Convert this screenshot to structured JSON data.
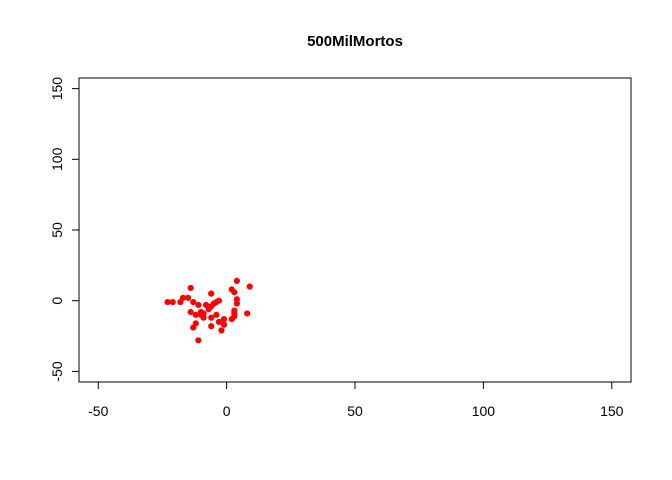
{
  "chart_data": {
    "type": "scatter",
    "title": "500MilMortos",
    "xlabel": "",
    "ylabel": "",
    "xlim": [
      -57.5,
      157.5
    ],
    "ylim": [
      -57.5,
      157.5
    ],
    "x_ticks": [
      -50,
      0,
      50,
      100,
      150
    ],
    "y_ticks": [
      -50,
      0,
      50,
      100,
      150
    ],
    "grid": false,
    "legend": "none",
    "point_color": "#ff0000",
    "points": [
      {
        "x": -23,
        "y": -1
      },
      {
        "x": -21,
        "y": -1
      },
      {
        "x": -18,
        "y": -1
      },
      {
        "x": -17,
        "y": 2
      },
      {
        "x": -15,
        "y": 2
      },
      {
        "x": -14,
        "y": 9
      },
      {
        "x": -14,
        "y": -8
      },
      {
        "x": -13,
        "y": -1
      },
      {
        "x": -13,
        "y": -19
      },
      {
        "x": -12,
        "y": -16
      },
      {
        "x": -12,
        "y": -10
      },
      {
        "x": -11,
        "y": -28
      },
      {
        "x": -11,
        "y": -3
      },
      {
        "x": -10,
        "y": -8
      },
      {
        "x": -10,
        "y": -10
      },
      {
        "x": -9,
        "y": -9
      },
      {
        "x": -9,
        "y": -12
      },
      {
        "x": -8,
        "y": -3
      },
      {
        "x": -7,
        "y": -6
      },
      {
        "x": -6,
        "y": -4
      },
      {
        "x": -6,
        "y": -12
      },
      {
        "x": -6,
        "y": -18
      },
      {
        "x": -6,
        "y": 5
      },
      {
        "x": -5,
        "y": -2
      },
      {
        "x": -4,
        "y": -1
      },
      {
        "x": -4,
        "y": -10
      },
      {
        "x": -3,
        "y": 0
      },
      {
        "x": -3,
        "y": -15
      },
      {
        "x": -2,
        "y": -21
      },
      {
        "x": -1,
        "y": -17
      },
      {
        "x": 2,
        "y": 8
      },
      {
        "x": 2,
        "y": -13
      },
      {
        "x": 3,
        "y": 6
      },
      {
        "x": 3,
        "y": -9
      },
      {
        "x": 3,
        "y": -11
      },
      {
        "x": 3,
        "y": -7
      },
      {
        "x": 4,
        "y": 1
      },
      {
        "x": 4,
        "y": -2
      },
      {
        "x": 4,
        "y": 14
      },
      {
        "x": 8,
        "y": -9
      },
      {
        "x": 9,
        "y": 10
      },
      {
        "x": -1,
        "y": -13
      }
    ]
  }
}
